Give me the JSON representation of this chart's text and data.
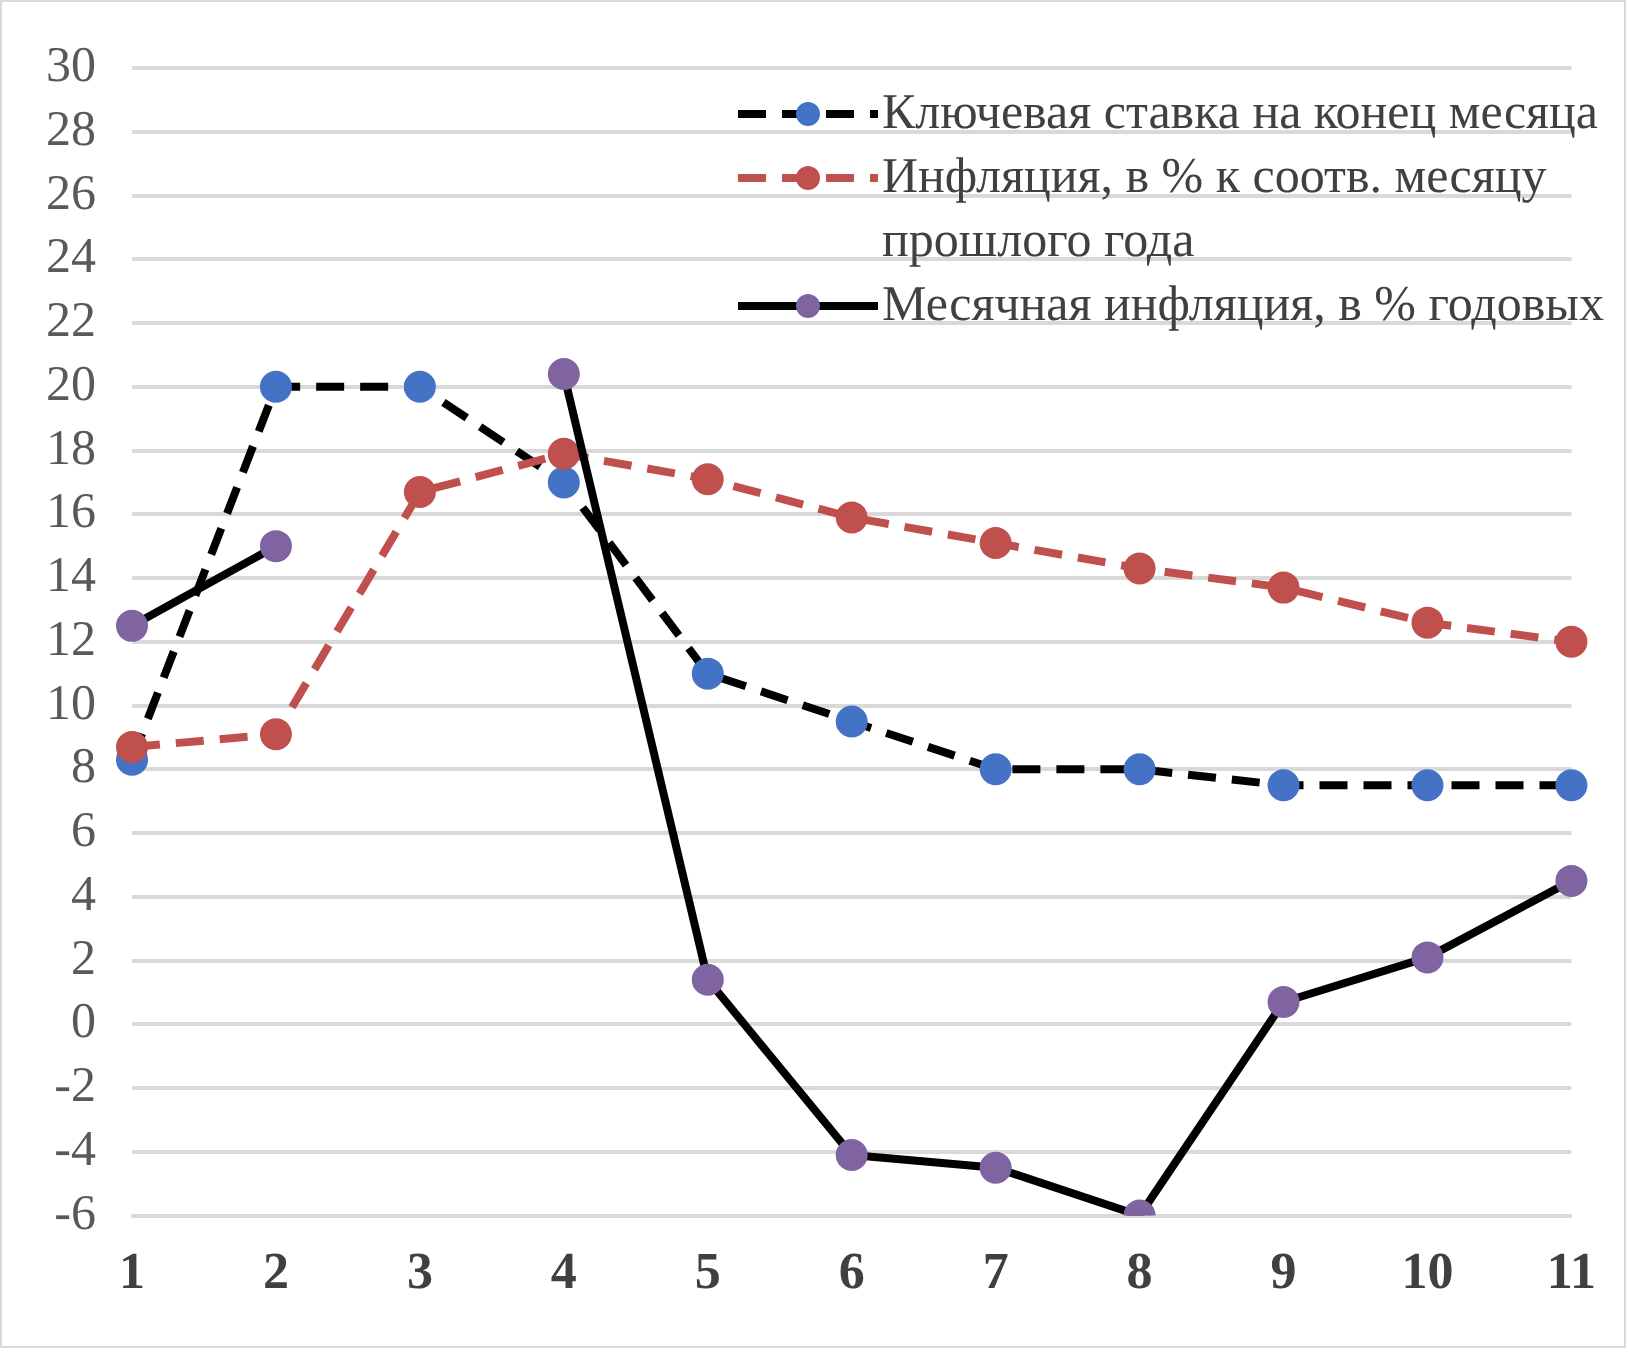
{
  "chart_data": {
    "type": "line",
    "categories": [
      "1",
      "2",
      "3",
      "4",
      "5",
      "6",
      "7",
      "8",
      "9",
      "10",
      "11"
    ],
    "series": [
      {
        "name": "Ключевая ставка на конец месяца",
        "color": "#000000",
        "colors": [
          "#4472c4",
          "#4472c4",
          "#4472c4",
          "#4472c4",
          "#4472c4",
          "#4472c4",
          "#4472c4",
          "#4472c4",
          "#4472c4",
          "#4472c4",
          "#4472c4"
        ],
        "line_style": "dashed",
        "values": [
          8.3,
          20,
          20,
          17,
          11,
          9.5,
          8,
          8,
          7.5,
          7.5,
          7.5
        ]
      },
      {
        "name": "Инфляция, в % к соотв. месяцу прошлого года",
        "color": "#c0504d",
        "colors": [
          "#c0504d",
          "#c0504d",
          "#c0504d",
          "#c0504d",
          "#c0504d",
          "#c0504d",
          "#c0504d",
          "#c0504d",
          "#c0504d",
          "#c0504d",
          "#c0504d"
        ],
        "line_style": "dashed",
        "values": [
          8.7,
          9.1,
          16.7,
          17.9,
          17.1,
          15.9,
          15.1,
          14.3,
          13.7,
          12.6,
          12
        ]
      },
      {
        "name": "Месячная инфляция, в % годовых",
        "color": "#000000",
        "colors": [
          "#8064a2",
          "#8064a2",
          "#8064a2",
          "#8064a2",
          "#8064a2",
          "#8064a2",
          "#8064a2",
          "#8064a2",
          "#8064a2",
          "#8064a2",
          "#8064a2"
        ],
        "line_style": "solid",
        "values": [
          12.5,
          15,
          null,
          20.4,
          1.4,
          -4.1,
          -4.5,
          -6,
          0.7,
          2.1,
          4.5
        ]
      }
    ],
    "ylim": [
      -6,
      30
    ],
    "yticks": [
      -6,
      -4,
      -2,
      0,
      2,
      4,
      6,
      8,
      10,
      12,
      14,
      16,
      18,
      20,
      22,
      24,
      26,
      28,
      30
    ],
    "grid": "y",
    "legend": "top right",
    "marker": "circle"
  }
}
